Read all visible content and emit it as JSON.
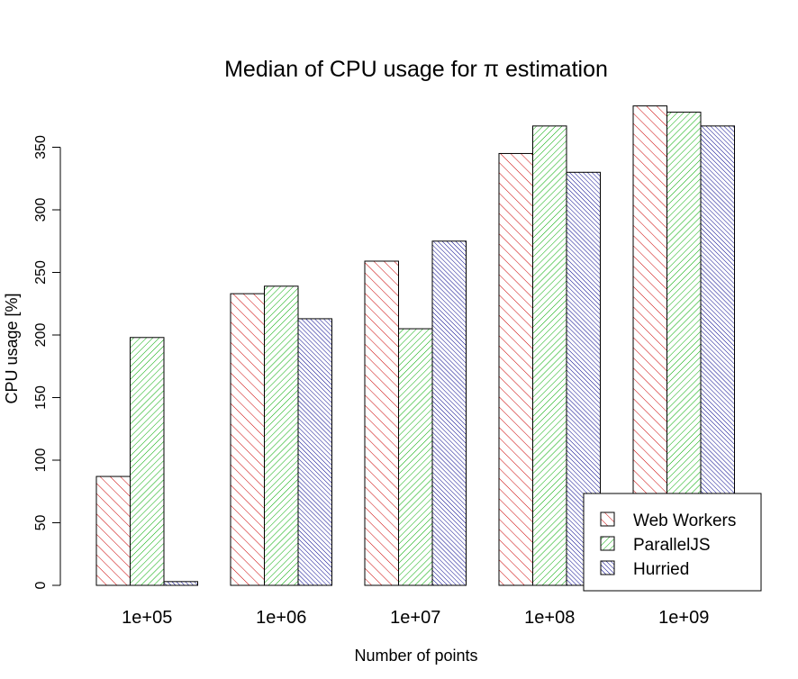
{
  "chart_data": {
    "type": "bar",
    "title": "Median of CPU usage for π estimation",
    "xlabel": "Number of points",
    "ylabel": "CPU usage [%]",
    "categories": [
      "1e+05",
      "1e+06",
      "1e+07",
      "1e+08",
      "1e+09"
    ],
    "yticks": [
      "0",
      "50",
      "100",
      "150",
      "200",
      "250",
      "300",
      "350"
    ],
    "ylim": [
      0,
      385
    ],
    "grid": false,
    "legend_position": "bottom-right",
    "series": [
      {
        "name": "Web Workers",
        "color": "#cc0000",
        "values": [
          87,
          233,
          259,
          345,
          383
        ]
      },
      {
        "name": "ParallelJS",
        "color": "#00aa00",
        "values": [
          198,
          239,
          205,
          367,
          378
        ]
      },
      {
        "name": "Hurried",
        "color": "#00008b",
        "values": [
          3,
          213,
          275,
          330,
          367
        ]
      }
    ]
  }
}
